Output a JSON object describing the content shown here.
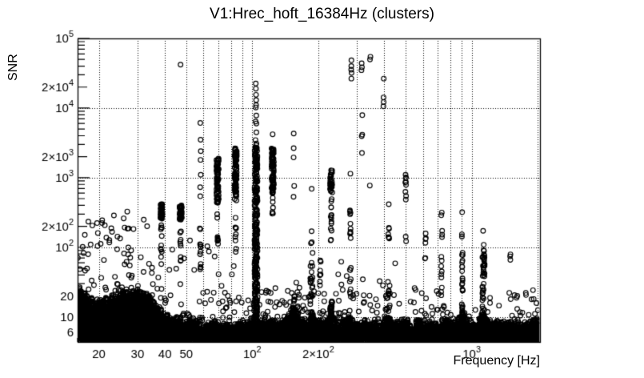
{
  "figure": {
    "title": "V1:Hrec_hoft_16384Hz (clusters)",
    "background_color": "#ffffff",
    "foreground_color": "#000000"
  },
  "chart_data": {
    "type": "scatter",
    "title": "V1:Hrec_hoft_16384Hz (clusters)",
    "xlabel": "Frequency [Hz]",
    "ylabel": "SNR",
    "xscale": "log",
    "yscale": "log",
    "xlim": [
      16,
      2048
    ],
    "ylim": [
      4.36,
      100000
    ],
    "grid": {
      "style": "dotted",
      "x_values": [
        20,
        30,
        40,
        50,
        60,
        70,
        80,
        90,
        100,
        200,
        300,
        400,
        500,
        600,
        700,
        800,
        900,
        1000,
        2000
      ],
      "y_values": [
        10,
        100,
        1000,
        10000
      ]
    },
    "x_ticks": [
      {
        "value": 20,
        "base": "20",
        "exp": ""
      },
      {
        "value": 30,
        "base": "30",
        "exp": ""
      },
      {
        "value": 40,
        "base": "40",
        "exp": ""
      },
      {
        "value": 50,
        "base": "50",
        "exp": ""
      },
      {
        "value": 100,
        "base": "10",
        "exp": "2"
      },
      {
        "value": 200,
        "base": "2×10",
        "exp": "2"
      },
      {
        "value": 1000,
        "base": "10",
        "exp": "3"
      }
    ],
    "y_ticks": [
      {
        "value": 6,
        "base": "6",
        "exp": ""
      },
      {
        "value": 10,
        "base": "10",
        "exp": ""
      },
      {
        "value": 20,
        "base": "20",
        "exp": ""
      },
      {
        "value": 100,
        "base": "10",
        "exp": "2"
      },
      {
        "value": 200,
        "base": "2×10",
        "exp": "2"
      },
      {
        "value": 1000,
        "base": "10",
        "exp": "3"
      },
      {
        "value": 2000,
        "base": "2×10",
        "exp": "3"
      },
      {
        "value": 10000,
        "base": "10",
        "exp": "4"
      },
      {
        "value": 20000,
        "base": "2×10",
        "exp": "4"
      },
      {
        "value": 100000,
        "base": "10",
        "exp": "5"
      }
    ],
    "marker": {
      "shape": "open-circle",
      "radius": 2.9,
      "color": "#000000"
    },
    "noise_band": {
      "snr_floor": 4.9,
      "envelope": [
        [
          16,
          24
        ],
        [
          17,
          20
        ],
        [
          18,
          17
        ],
        [
          19,
          15
        ],
        [
          20,
          14
        ],
        [
          22,
          16
        ],
        [
          24,
          18
        ],
        [
          26,
          19
        ],
        [
          28,
          20
        ],
        [
          30,
          20
        ],
        [
          32,
          19
        ],
        [
          34,
          17
        ],
        [
          36,
          13
        ],
        [
          38,
          11
        ],
        [
          40,
          9.5
        ],
        [
          43,
          8.5
        ],
        [
          46,
          9
        ],
        [
          50,
          8
        ],
        [
          54,
          7.5
        ],
        [
          58,
          7.5
        ],
        [
          63,
          7
        ],
        [
          68,
          7.5
        ],
        [
          74,
          7
        ],
        [
          80,
          7
        ],
        [
          86,
          7.5
        ],
        [
          93,
          7
        ],
        [
          100,
          8
        ],
        [
          108,
          7
        ],
        [
          116,
          7.5
        ],
        [
          125,
          8
        ],
        [
          134,
          7
        ],
        [
          143,
          8
        ],
        [
          152,
          13
        ],
        [
          160,
          10
        ],
        [
          170,
          8
        ],
        [
          180,
          8
        ],
        [
          188,
          10
        ],
        [
          196,
          7
        ],
        [
          205,
          8
        ],
        [
          215,
          7
        ],
        [
          222,
          8
        ],
        [
          229,
          13
        ],
        [
          236,
          8
        ],
        [
          245,
          7
        ],
        [
          256,
          7.5
        ],
        [
          268,
          8
        ],
        [
          280,
          9
        ],
        [
          292,
          7.5
        ],
        [
          305,
          7
        ],
        [
          320,
          8
        ],
        [
          335,
          7
        ],
        [
          350,
          7.5
        ],
        [
          368,
          7
        ],
        [
          385,
          7.5
        ],
        [
          400,
          8
        ],
        [
          415,
          9
        ],
        [
          430,
          7.5
        ],
        [
          450,
          7
        ],
        [
          470,
          7.5
        ],
        [
          490,
          8
        ],
        [
          510,
          8
        ],
        [
          530,
          7
        ],
        [
          555,
          7.5
        ],
        [
          580,
          8
        ],
        [
          605,
          8
        ],
        [
          630,
          7
        ],
        [
          660,
          7.5
        ],
        [
          690,
          7
        ],
        [
          720,
          8
        ],
        [
          755,
          8.5
        ],
        [
          790,
          7
        ],
        [
          830,
          7
        ],
        [
          870,
          8
        ],
        [
          905,
          10
        ],
        [
          940,
          8
        ],
        [
          980,
          7
        ],
        [
          1020,
          7.5
        ],
        [
          1060,
          7
        ],
        [
          1100,
          9
        ],
        [
          1135,
          10
        ],
        [
          1170,
          8
        ],
        [
          1220,
          7
        ],
        [
          1280,
          7.5
        ],
        [
          1340,
          7
        ],
        [
          1400,
          7.5
        ],
        [
          1460,
          7
        ],
        [
          1530,
          7.5
        ],
        [
          1600,
          7
        ],
        [
          1680,
          7.5
        ],
        [
          1760,
          7
        ],
        [
          1850,
          7.5
        ],
        [
          1950,
          8
        ],
        [
          2048,
          8.5
        ]
      ]
    },
    "spectral_lines": [
      {
        "f": 38.5,
        "dense": [
          [
            255,
            430,
            60
          ]
        ],
        "sparse": [
          [
            140,
            225,
            6
          ],
          [
            55,
            115,
            6
          ]
        ],
        "points": []
      },
      {
        "f": 47.2,
        "dense": [
          [
            245,
            400,
            55
          ]
        ],
        "sparse": [
          [
            105,
            195,
            6
          ],
          [
            44,
            78,
            4
          ]
        ],
        "points": [
          42000
        ]
      },
      {
        "f": 58,
        "dense": [],
        "sparse": [
          [
            38,
            90,
            7
          ],
          [
            95,
            215,
            6
          ]
        ],
        "points": [
          540,
          730,
          1100,
          1800,
          2400,
          3500,
          6100
        ]
      },
      {
        "f": 69.5,
        "dense": [
          [
            430,
            1950,
            75
          ]
        ],
        "sparse": [
          [
            90,
            360,
            10
          ]
        ],
        "points": []
      },
      {
        "f": 84,
        "dense": [
          [
            470,
            2650,
            85
          ]
        ],
        "sparse": [
          [
            85,
            320,
            9
          ]
        ],
        "points": []
      },
      {
        "f": 104,
        "dense": [
          [
            5.2,
            2750,
            300
          ]
        ],
        "sparse": [
          [
            2900,
            4600,
            4
          ]
        ],
        "points": [
          22500,
          19000,
          15500,
          13000,
          11000,
          10200,
          7800,
          6400,
          6000
        ]
      },
      {
        "f": 124,
        "dense": [
          [
            590,
            2650,
            95
          ]
        ],
        "sparse": [
          [
            285,
            570,
            7
          ]
        ],
        "points": [
          4200
        ]
      },
      {
        "f": 155,
        "dense": [],
        "sparse": [
          [
            11,
            20,
            9
          ]
        ],
        "points": [
          4300,
          2650,
          1950,
          760,
          530
        ]
      },
      {
        "f": 186,
        "dense": [
          [
            5,
            85,
            34
          ]
        ],
        "sparse": [
          [
            100,
            210,
            3
          ]
        ],
        "points": [
          690
        ]
      },
      {
        "f": 204,
        "dense": [],
        "sparse": [
          [
            26,
            70,
            7
          ]
        ],
        "points": []
      },
      {
        "f": 229,
        "dense": [
          [
            610,
            1320,
            28
          ],
          [
            5,
            17,
            18
          ]
        ],
        "sparse": [
          [
            115,
            510,
            14
          ]
        ],
        "points": []
      },
      {
        "f": 280,
        "dense": [],
        "sparse": [
          [
            115,
            340,
            10
          ],
          [
            14,
            60,
            9
          ]
        ],
        "points": [
          1140
        ]
      },
      {
        "f": 283,
        "dense": [],
        "sparse": [],
        "points": [
          48500,
          40000,
          35500,
          32000,
          26500
        ]
      },
      {
        "f": 316,
        "dense": [],
        "sparse": [],
        "points": [
          44000,
          38500,
          35000,
          7900,
          4150,
          3950,
          2260
        ]
      },
      {
        "f": 344,
        "dense": [],
        "sparse": [],
        "points": [
          54500,
          50000,
          770
        ]
      },
      {
        "f": 398,
        "dense": [],
        "sparse": [],
        "points": [
          26500,
          14200,
          12200,
          10600
        ]
      },
      {
        "f": 419,
        "dense": [
          [
            5,
            32,
            16
          ]
        ],
        "sparse": [
          [
            115,
            245,
            6
          ]
        ],
        "points": [
          415
        ]
      },
      {
        "f": 500,
        "dense": [],
        "sparse": [
          [
            750,
            1130,
            6
          ]
        ],
        "points": [
          625,
          545,
          485,
          142,
          122
        ]
      },
      {
        "f": 615,
        "dense": [],
        "sparse": [
          [
            66,
            180,
            6
          ]
        ],
        "points": []
      },
      {
        "f": 730,
        "dense": [],
        "sparse": [
          [
            17,
            55,
            7
          ]
        ],
        "points": [
          315,
          288,
          172,
          152,
          140,
          73,
          64
        ]
      },
      {
        "f": 905,
        "dense": [
          [
            5,
            20,
            16
          ]
        ],
        "sparse": [
          [
            21,
            162,
            16
          ]
        ],
        "points": [
          318
        ]
      },
      {
        "f": 1132,
        "dense": [
          [
            5,
            82,
            48
          ]
        ],
        "sparse": [
          [
            88,
            112,
            3
          ]
        ],
        "points": [
          172
        ]
      },
      {
        "f": 1500,
        "dense": [],
        "sparse": [],
        "points": [
          79,
          74,
          66
        ]
      },
      {
        "f": 1330,
        "dense": [],
        "sparse": [],
        "points": [
          14.5
        ]
      },
      {
        "f": 1610,
        "dense": [],
        "sparse": [],
        "points": [
          20,
          13
        ]
      },
      {
        "f": 1705,
        "dense": [],
        "sparse": [],
        "points": [
          11.5
        ]
      }
    ],
    "sparse_regions": [
      {
        "f": [
          16,
          36
        ],
        "snr": [
          20,
          340
        ],
        "n": 42
      },
      {
        "f": [
          16,
          23
        ],
        "snr": [
          90,
          310
        ],
        "n": 9
      },
      {
        "f": [
          40,
          100
        ],
        "snr": [
          22,
          300
        ],
        "n": 15
      },
      {
        "f": [
          36,
          110
        ],
        "snr": [
          8,
          21
        ],
        "n": 34
      },
      {
        "f": [
          100,
          240
        ],
        "snr": [
          9,
          26
        ],
        "n": 32
      },
      {
        "f": [
          240,
          520
        ],
        "snr": [
          8,
          62
        ],
        "n": 26
      },
      {
        "f": [
          520,
          2048
        ],
        "snr": [
          8,
          26
        ],
        "n": 24
      }
    ],
    "halo": {
      "n": 260,
      "spread_decades": 0.55
    }
  }
}
